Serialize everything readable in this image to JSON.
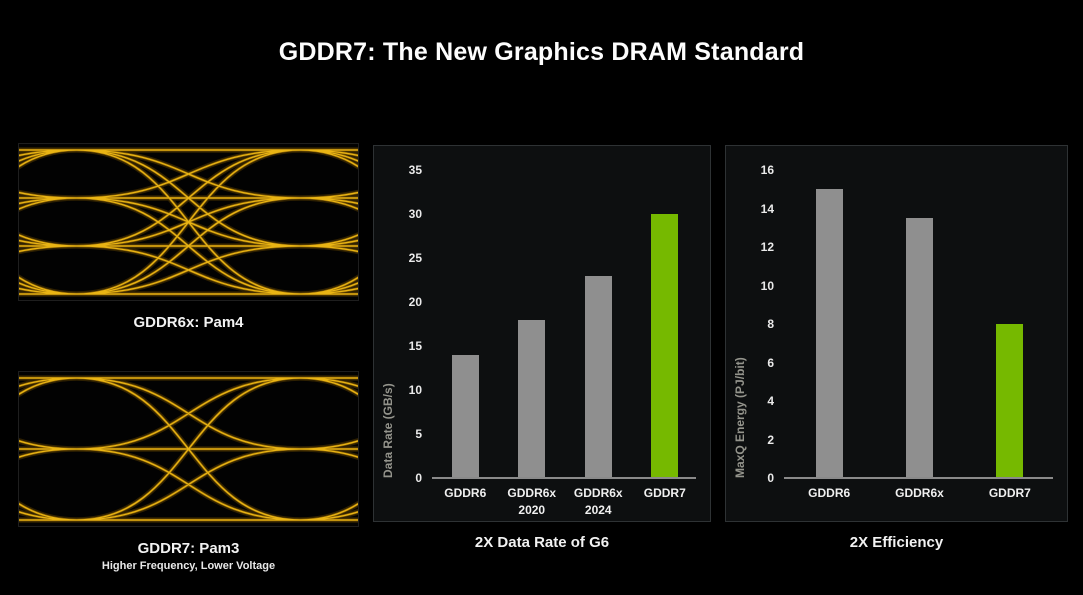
{
  "page": {
    "title": "GDDR7: The New Graphics DRAM Standard"
  },
  "colors": {
    "background": "#000000",
    "panel_background": "#0d0f10",
    "panel_border": "#2e3234",
    "bar_gray": "#8f8f8f",
    "nvidia_green": "#76b900",
    "axis_text": "#eaeaea",
    "axis_title": "#94948c",
    "eye_line_gold": "#e8b414"
  },
  "eye_diagrams": [
    {
      "caption": "GDDR6x: Pam4",
      "subcaption": "",
      "levels": 4,
      "line_color": "#e9b414"
    },
    {
      "caption": "GDDR7: Pam3",
      "subcaption": "Higher Frequency, Lower Voltage",
      "levels": 3,
      "line_color": "#e9b414"
    }
  ],
  "chart_data": [
    {
      "type": "bar",
      "title": "2X Data Rate of G6",
      "xlabel": "",
      "ylabel": "Data Rate (GB/s)",
      "categories": [
        "GDDR6",
        "GDDR6x\n2020",
        "GDDR6x\n2024",
        "GDDR7"
      ],
      "values": [
        14,
        18,
        23,
        30
      ],
      "bar_colors": [
        "#8f8f8f",
        "#8f8f8f",
        "#8f8f8f",
        "#76b900"
      ],
      "ylim": [
        0,
        35
      ],
      "yticks": [
        0,
        5,
        10,
        15,
        20,
        25,
        30,
        35
      ],
      "grid": false,
      "legend": null
    },
    {
      "type": "bar",
      "title": "2X Efficiency",
      "xlabel": "",
      "ylabel": "MaxQ Energy (PJ/bit)",
      "categories": [
        "GDDR6",
        "GDDR6x",
        "GDDR7"
      ],
      "values": [
        15,
        13.5,
        8
      ],
      "bar_colors": [
        "#8f8f8f",
        "#8f8f8f",
        "#76b900"
      ],
      "ylim": [
        0,
        16
      ],
      "yticks": [
        0,
        2,
        4,
        6,
        8,
        10,
        12,
        14,
        16
      ],
      "grid": false,
      "legend": null
    }
  ]
}
